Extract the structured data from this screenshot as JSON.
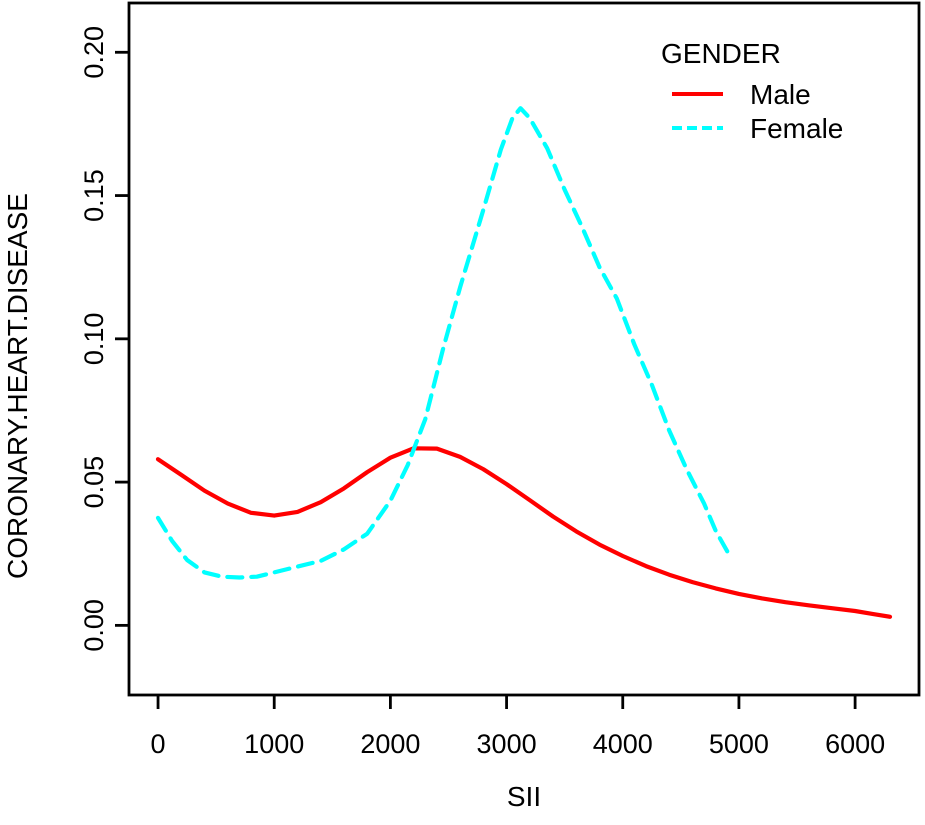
{
  "colors": {
    "background": "#ffffff",
    "axis": "#000000",
    "text": "#000000",
    "male": "#ff0000",
    "female": "#00ffff"
  },
  "chart_data": {
    "type": "line",
    "title": "",
    "xlabel": "SII",
    "ylabel": "CORONARY.HEART.DISEASE",
    "grid": false,
    "xlim": [
      -250,
      6550
    ],
    "ylim": [
      -0.0243,
      0.2172
    ],
    "x_ticks": [
      0,
      1000,
      2000,
      3000,
      4000,
      5000,
      6000
    ],
    "x_tick_labels": [
      "0",
      "1000",
      "2000",
      "3000",
      "4000",
      "5000",
      "6000"
    ],
    "y_ticks": [
      0.0,
      0.05,
      0.1,
      0.15,
      0.2
    ],
    "y_tick_labels": [
      "0.00",
      "0.05",
      "0.10",
      "0.15",
      "0.20"
    ],
    "legend": {
      "title": "GENDER",
      "position": "top-right",
      "entries": [
        {
          "label": "Male",
          "color": "#ff0000",
          "style": "solid"
        },
        {
          "label": "Female",
          "color": "#00ffff",
          "style": "dashed"
        }
      ]
    },
    "series": [
      {
        "name": "Male",
        "color": "#ff0000",
        "style": "solid",
        "points": [
          [
            0,
            0.058
          ],
          [
            200,
            0.0525
          ],
          [
            400,
            0.047
          ],
          [
            600,
            0.0425
          ],
          [
            800,
            0.0393
          ],
          [
            1000,
            0.0383
          ],
          [
            1200,
            0.0396
          ],
          [
            1400,
            0.043
          ],
          [
            1600,
            0.0478
          ],
          [
            1800,
            0.0535
          ],
          [
            2000,
            0.0585
          ],
          [
            2200,
            0.0618
          ],
          [
            2400,
            0.0617
          ],
          [
            2600,
            0.0588
          ],
          [
            2800,
            0.0545
          ],
          [
            3000,
            0.0493
          ],
          [
            3200,
            0.0437
          ],
          [
            3400,
            0.038
          ],
          [
            3600,
            0.0328
          ],
          [
            3800,
            0.0282
          ],
          [
            4000,
            0.0242
          ],
          [
            4200,
            0.0207
          ],
          [
            4400,
            0.0177
          ],
          [
            4600,
            0.0151
          ],
          [
            4800,
            0.0129
          ],
          [
            5000,
            0.011
          ],
          [
            5200,
            0.0094
          ],
          [
            5400,
            0.0081
          ],
          [
            5600,
            0.007
          ],
          [
            5800,
            0.006
          ],
          [
            6000,
            0.005
          ],
          [
            6150,
            0.004
          ],
          [
            6300,
            0.003
          ]
        ]
      },
      {
        "name": "Female",
        "color": "#00ffff",
        "style": "dashed",
        "points": [
          [
            0,
            0.0375
          ],
          [
            120,
            0.0295
          ],
          [
            250,
            0.0228
          ],
          [
            400,
            0.0185
          ],
          [
            550,
            0.017
          ],
          [
            700,
            0.0167
          ],
          [
            850,
            0.017
          ],
          [
            1000,
            0.0185
          ],
          [
            1200,
            0.0205
          ],
          [
            1400,
            0.0225
          ],
          [
            1600,
            0.0265
          ],
          [
            1800,
            0.032
          ],
          [
            2000,
            0.0435
          ],
          [
            2150,
            0.056
          ],
          [
            2300,
            0.072
          ],
          [
            2450,
            0.096
          ],
          [
            2600,
            0.118
          ],
          [
            2800,
            0.145
          ],
          [
            2950,
            0.166
          ],
          [
            3050,
            0.177
          ],
          [
            3120,
            0.1805
          ],
          [
            3200,
            0.177
          ],
          [
            3350,
            0.1665
          ],
          [
            3500,
            0.152
          ],
          [
            3650,
            0.139
          ],
          [
            3800,
            0.125
          ],
          [
            3950,
            0.114
          ],
          [
            4100,
            0.098
          ],
          [
            4250,
            0.084
          ],
          [
            4400,
            0.068
          ],
          [
            4550,
            0.0545
          ],
          [
            4700,
            0.0425
          ],
          [
            4800,
            0.033
          ],
          [
            4900,
            0.0258
          ]
        ]
      }
    ]
  }
}
